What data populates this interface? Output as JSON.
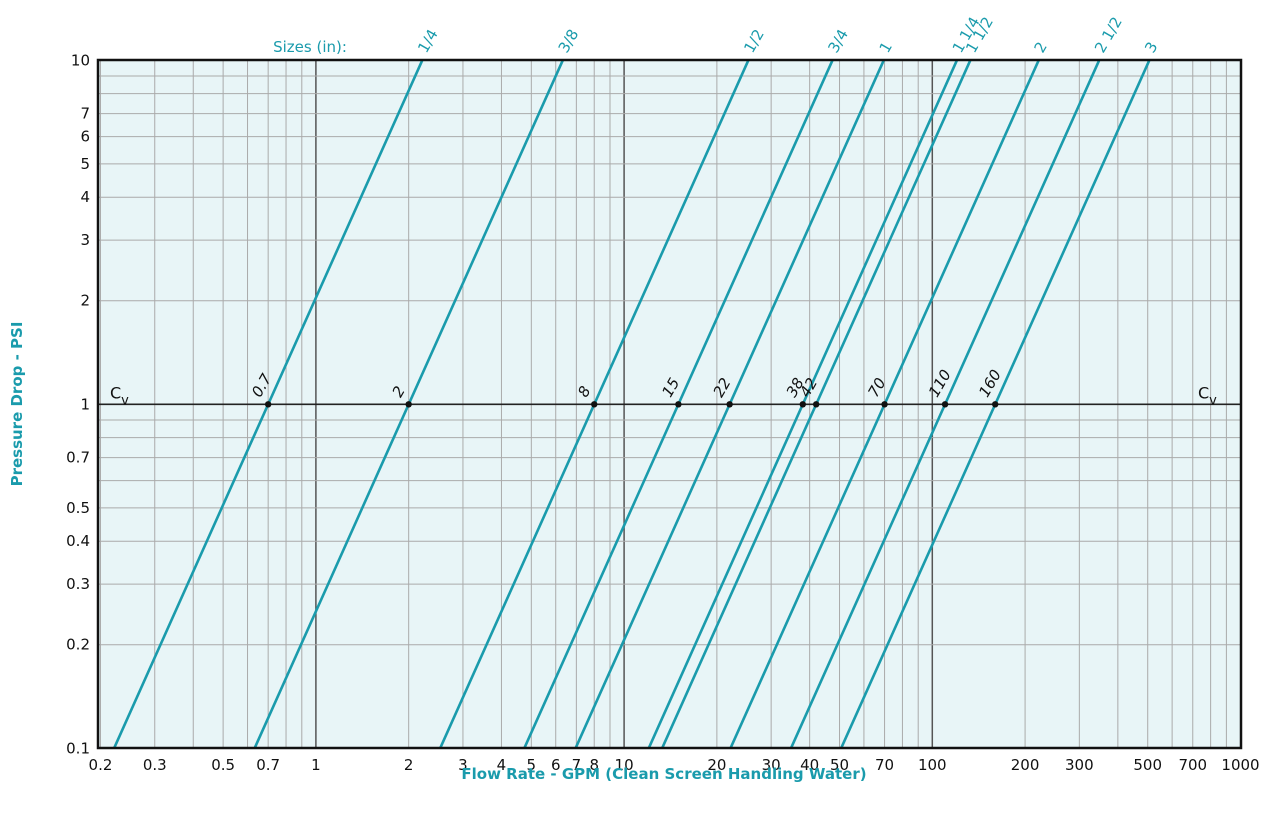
{
  "chart_data": {
    "type": "line",
    "x_scale": "log",
    "y_scale": "log",
    "xlim": [
      0.2,
      1000
    ],
    "ylim": [
      0.1,
      10
    ],
    "xlabel": "Flow Rate - GPM (Clean Screen Handling Water)",
    "ylabel": "Pressure Drop - PSI",
    "sizes_header": "Sizes (in):",
    "cv_label": "Cv",
    "reference_line_y": 1,
    "grid": true,
    "x_ticks": [
      "0.2",
      "0.3",
      "0.5",
      "0.7",
      "1",
      "2",
      "3",
      "4",
      "5",
      "6",
      "7",
      "8",
      "10",
      "20",
      "30",
      "40",
      "50",
      "70",
      "100",
      "200",
      "300",
      "500",
      "700",
      "1000"
    ],
    "y_ticks": [
      "0.1",
      "0.2",
      "0.3",
      "0.4",
      "0.5",
      "0.7",
      "1",
      "2",
      "3",
      "4",
      "5",
      "6",
      "7",
      "10"
    ],
    "series": [
      {
        "name": "1/4",
        "cv": "0.7"
      },
      {
        "name": "3/8",
        "cv": "2"
      },
      {
        "name": "1/2",
        "cv": "8"
      },
      {
        "name": "3/4",
        "cv": "15"
      },
      {
        "name": "1",
        "cv": "22"
      },
      {
        "name": "1 1/4",
        "cv": "38"
      },
      {
        "name": "1 1/2",
        "cv": "42"
      },
      {
        "name": "2",
        "cv": "70"
      },
      {
        "name": "2 1/2",
        "cv": "110"
      },
      {
        "name": "3",
        "cv": "160"
      }
    ],
    "line_color": "#1a9bac",
    "background_color": "#e8f5f7"
  }
}
